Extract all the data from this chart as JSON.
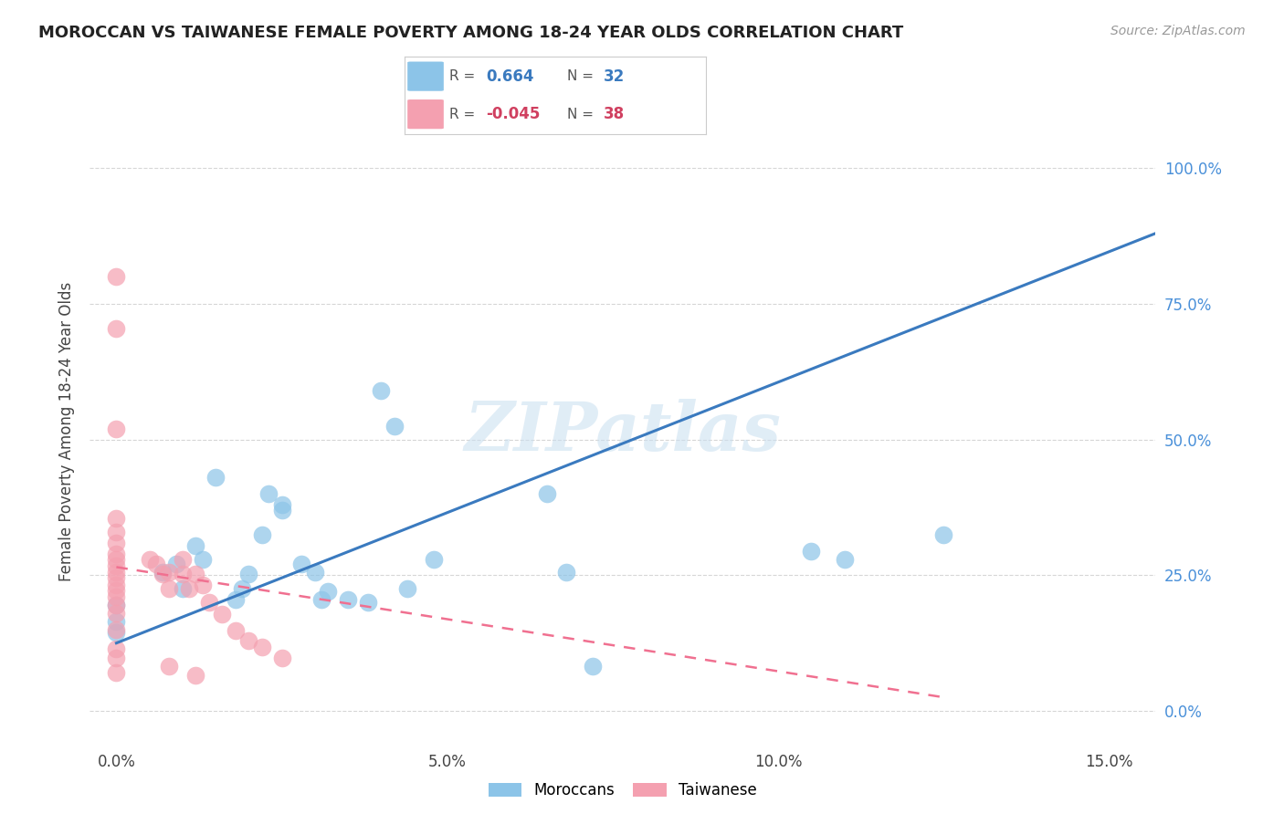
{
  "title": "MOROCCAN VS TAIWANESE FEMALE POVERTY AMONG 18-24 YEAR OLDS CORRELATION CHART",
  "source": "Source: ZipAtlas.com",
  "ylabel": "Female Poverty Among 18-24 Year Olds",
  "xlabel_ticks": [
    "0.0%",
    "5.0%",
    "10.0%",
    "15.0%"
  ],
  "xlabel_vals": [
    0.0,
    0.05,
    0.1,
    0.15
  ],
  "ylabel_ticks": [
    "0.0%",
    "25.0%",
    "50.0%",
    "75.0%",
    "100.0%"
  ],
  "ylabel_vals": [
    0.0,
    0.25,
    0.5,
    0.75,
    1.0
  ],
  "xlim": [
    -0.004,
    0.157
  ],
  "ylim": [
    -0.07,
    1.1
  ],
  "moroccan_R": "0.664",
  "moroccan_N": "32",
  "taiwanese_R": "-0.045",
  "taiwanese_N": "38",
  "moroccan_color": "#8cc4e8",
  "taiwanese_color": "#f4a0b0",
  "moroccan_line_color": "#3a7abf",
  "taiwanese_line_color": "#f07090",
  "watermark": "ZIPatlas",
  "moroccan_points": [
    [
      0.0,
      0.165
    ],
    [
      0.0,
      0.145
    ],
    [
      0.0,
      0.195
    ],
    [
      0.007,
      0.255
    ],
    [
      0.009,
      0.27
    ],
    [
      0.01,
      0.225
    ],
    [
      0.012,
      0.305
    ],
    [
      0.013,
      0.28
    ],
    [
      0.015,
      0.43
    ],
    [
      0.018,
      0.205
    ],
    [
      0.019,
      0.225
    ],
    [
      0.02,
      0.252
    ],
    [
      0.022,
      0.325
    ],
    [
      0.023,
      0.4
    ],
    [
      0.025,
      0.37
    ],
    [
      0.025,
      0.38
    ],
    [
      0.028,
      0.27
    ],
    [
      0.03,
      0.255
    ],
    [
      0.031,
      0.205
    ],
    [
      0.032,
      0.22
    ],
    [
      0.035,
      0.205
    ],
    [
      0.038,
      0.2
    ],
    [
      0.04,
      0.59
    ],
    [
      0.042,
      0.525
    ],
    [
      0.044,
      0.225
    ],
    [
      0.048,
      0.28
    ],
    [
      0.065,
      0.4
    ],
    [
      0.068,
      0.255
    ],
    [
      0.072,
      0.082
    ],
    [
      0.105,
      0.295
    ],
    [
      0.11,
      0.28
    ],
    [
      0.125,
      0.325
    ]
  ],
  "taiwanese_points": [
    [
      0.0,
      0.8
    ],
    [
      0.0,
      0.705
    ],
    [
      0.0,
      0.52
    ],
    [
      0.0,
      0.355
    ],
    [
      0.0,
      0.33
    ],
    [
      0.0,
      0.31
    ],
    [
      0.0,
      0.29
    ],
    [
      0.0,
      0.28
    ],
    [
      0.0,
      0.268
    ],
    [
      0.0,
      0.255
    ],
    [
      0.0,
      0.245
    ],
    [
      0.0,
      0.232
    ],
    [
      0.0,
      0.222
    ],
    [
      0.0,
      0.21
    ],
    [
      0.0,
      0.195
    ],
    [
      0.0,
      0.18
    ],
    [
      0.0,
      0.15
    ],
    [
      0.0,
      0.115
    ],
    [
      0.0,
      0.098
    ],
    [
      0.0,
      0.07
    ],
    [
      0.005,
      0.28
    ],
    [
      0.006,
      0.27
    ],
    [
      0.007,
      0.252
    ],
    [
      0.008,
      0.255
    ],
    [
      0.008,
      0.225
    ],
    [
      0.01,
      0.28
    ],
    [
      0.01,
      0.252
    ],
    [
      0.011,
      0.225
    ],
    [
      0.012,
      0.252
    ],
    [
      0.013,
      0.232
    ],
    [
      0.014,
      0.2
    ],
    [
      0.016,
      0.178
    ],
    [
      0.018,
      0.148
    ],
    [
      0.02,
      0.13
    ],
    [
      0.022,
      0.118
    ],
    [
      0.025,
      0.098
    ],
    [
      0.008,
      0.082
    ],
    [
      0.012,
      0.065
    ]
  ],
  "moroccan_line_x": [
    0.0,
    0.157
  ],
  "moroccan_line_y": [
    0.125,
    0.88
  ],
  "taiwanese_line_x": [
    0.0,
    0.125
  ],
  "taiwanese_line_y": [
    0.265,
    0.025
  ]
}
